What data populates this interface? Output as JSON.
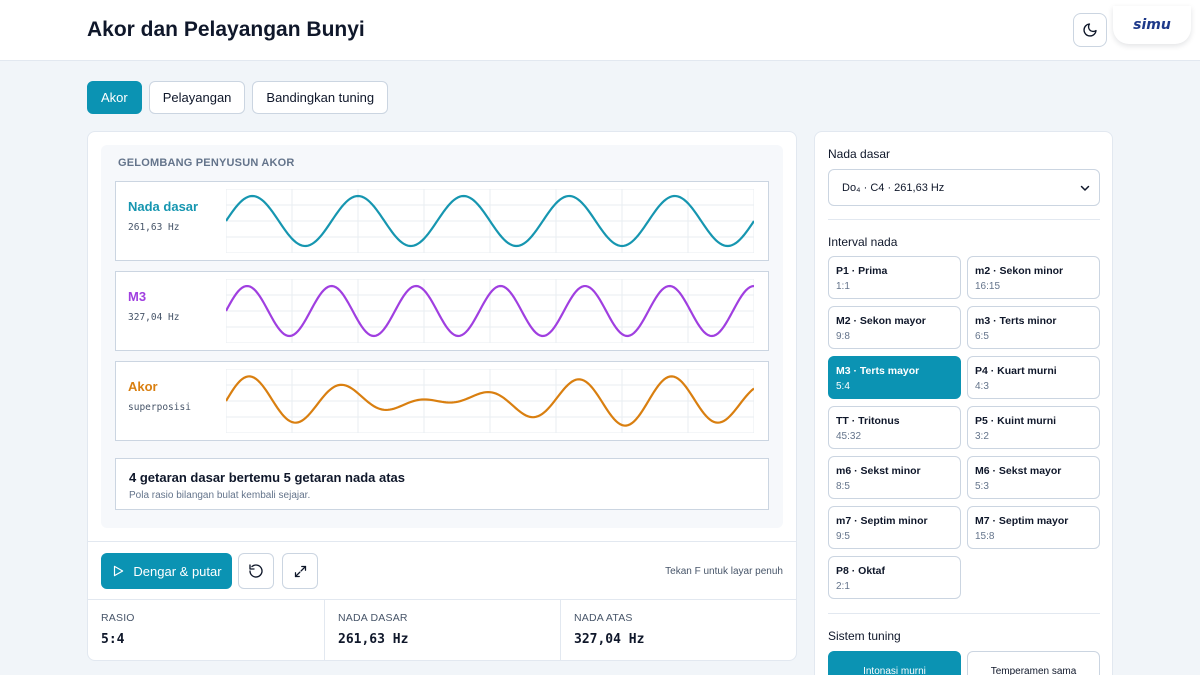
{
  "header": {
    "title": "Akor dan Pelayangan Bunyi",
    "logo": "simu"
  },
  "tabs": [
    {
      "label": "Akor",
      "active": true
    },
    {
      "label": "Pelayangan",
      "active": false
    },
    {
      "label": "Bandingkan tuning",
      "active": false
    }
  ],
  "wave_panel": {
    "heading": "GELOMBANG PENYUSUN AKOR",
    "rows": [
      {
        "label": "Nada dasar",
        "sub": "261,63 Hz",
        "color": "#1696b0",
        "cycles": 5
      },
      {
        "label": "M3",
        "sub": "327,04 Hz",
        "color": "#a03fe0",
        "cycles": 6.25
      },
      {
        "label": "Akor",
        "sub": "superposisi",
        "color": "#d97f10"
      }
    ],
    "summary_title": "4 getaran dasar bertemu 5 getaran nada atas",
    "summary_sub": "Pola rasio bilangan bulat kembali sejajar."
  },
  "controls": {
    "play_label": "Dengar & putar",
    "fullscreen_hint": "Tekan F untuk layar penuh"
  },
  "stats": [
    {
      "label": "RASIO",
      "value": "5:4"
    },
    {
      "label": "NADA DASAR",
      "value": "261,63 Hz"
    },
    {
      "label": "NADA ATAS",
      "value": "327,04 Hz"
    }
  ],
  "sidebar": {
    "root_label": "Nada dasar",
    "root_value": "Do₄ · C4 · 261,63 Hz",
    "interval_label": "Interval nada",
    "intervals": [
      {
        "name": "P1 · Prima",
        "ratio": "1:1",
        "active": false
      },
      {
        "name": "m2 · Sekon minor",
        "ratio": "16:15",
        "active": false
      },
      {
        "name": "M2 · Sekon mayor",
        "ratio": "9:8",
        "active": false
      },
      {
        "name": "m3 · Terts minor",
        "ratio": "6:5",
        "active": false
      },
      {
        "name": "M3 · Terts mayor",
        "ratio": "5:4",
        "active": true
      },
      {
        "name": "P4 · Kuart murni",
        "ratio": "4:3",
        "active": false
      },
      {
        "name": "TT · Tritonus",
        "ratio": "45:32",
        "active": false
      },
      {
        "name": "P5 · Kuint murni",
        "ratio": "3:2",
        "active": false
      },
      {
        "name": "m6 · Sekst minor",
        "ratio": "8:5",
        "active": false
      },
      {
        "name": "M6 · Sekst mayor",
        "ratio": "5:3",
        "active": false
      },
      {
        "name": "m7 · Septim minor",
        "ratio": "9:5",
        "active": false
      },
      {
        "name": "M7 · Septim mayor",
        "ratio": "15:8",
        "active": false
      },
      {
        "name": "P8 · Oktaf",
        "ratio": "2:1",
        "active": false
      }
    ],
    "tuning_label": "Sistem tuning",
    "tuning_options": [
      {
        "label": "Intonasi murni",
        "active": true
      },
      {
        "label": "Temperamen sama",
        "active": false
      }
    ]
  },
  "colors": {
    "accent": "#0b93b3"
  }
}
